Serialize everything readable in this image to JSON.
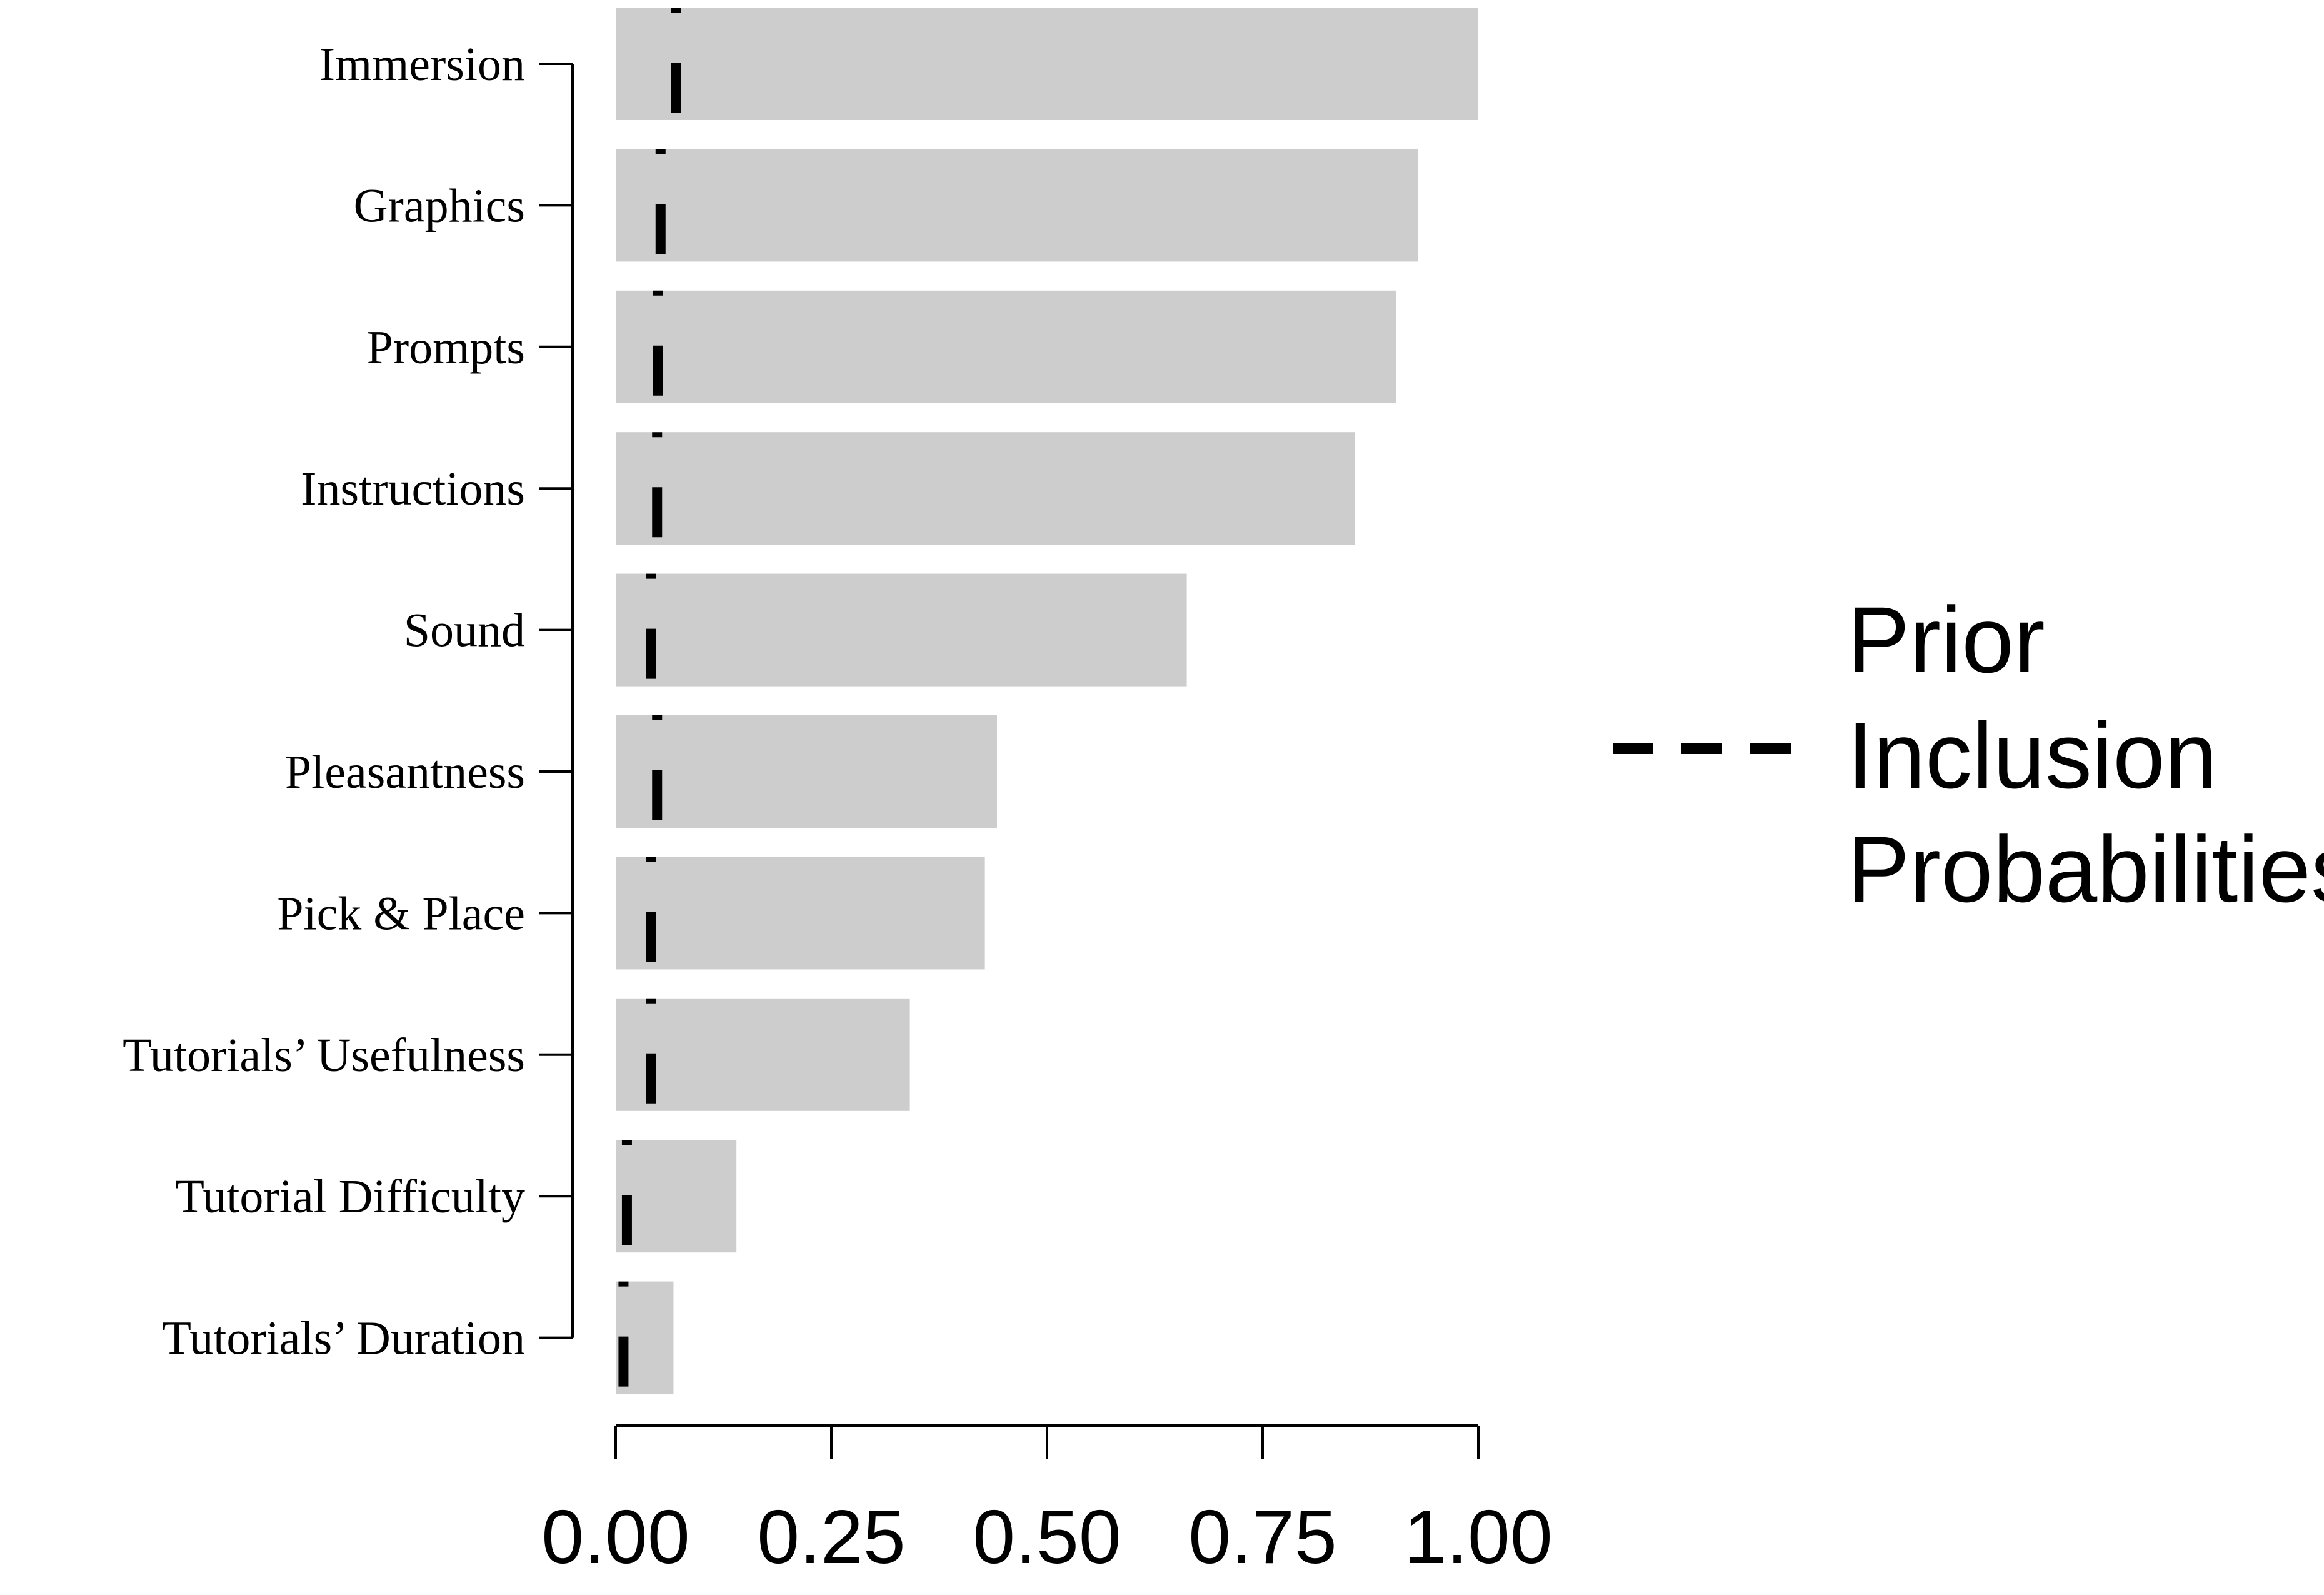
{
  "chart_data": {
    "type": "bar",
    "orientation": "horizontal",
    "categories": [
      "Immersion",
      "Graphics",
      "Prompts",
      "Instructions",
      "Sound",
      "Pleasantness",
      "Pick & Place",
      "Tutorials’ Usefulness",
      "Tutorial Difficulty",
      "Tutorials’ Duration"
    ],
    "series": [
      {
        "values": [
          1.0,
          0.93,
          0.905,
          0.857,
          0.662,
          0.442,
          0.428,
          0.341,
          0.14,
          0.067
        ]
      }
    ],
    "prior_values": [
      0.07,
      0.052,
      0.049,
      0.048,
      0.041,
      0.048,
      0.041,
      0.041,
      0.013,
      0.009
    ],
    "xticks": [
      "0.00",
      "0.25",
      "0.50",
      "0.75",
      "1.00"
    ],
    "xtick_values": [
      0,
      0.25,
      0.5,
      0.75,
      1.0
    ],
    "xlim": [
      0,
      1
    ],
    "title": "",
    "xlabel": "",
    "ylabel": "",
    "legend": {
      "label_lines": [
        "Prior",
        "Inclusion",
        "Probabilities"
      ],
      "position": "right"
    },
    "bar_color": "#cdcdcd",
    "prior_line_color": "#000000",
    "grid": false
  }
}
